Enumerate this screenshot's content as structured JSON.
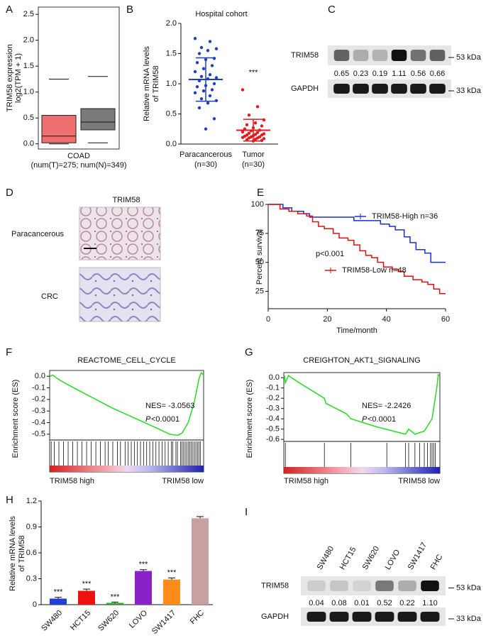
{
  "chart_data": [
    {
      "type": "box",
      "label": "A",
      "ylabel": [
        "TRIM58 expression",
        "log2(TPM + 1)"
      ],
      "xlabel": [
        "COAD",
        "(num(T)=275; num(N)=349)"
      ],
      "ylim": [
        -0.1,
        2.64
      ],
      "yticks": [
        {
          "value": 0,
          "label": "0.0"
        },
        0.5,
        {
          "value": 1,
          "label": "1.0"
        },
        1.5,
        {
          "value": 2,
          "label": "2.0"
        },
        2.5
      ],
      "groups": [
        {
          "color": "#f07070",
          "whiskers": [
            0,
            1.25
          ],
          "box": [
            0.02,
            0.15,
            0.55
          ]
        },
        {
          "color": "#7a7a7a",
          "whiskers": [
            0.02,
            1.3
          ],
          "box": [
            0.27,
            0.42,
            0.68
          ]
        }
      ]
    },
    {
      "type": "scatter",
      "label": "B",
      "title": "Hospital cohort",
      "ylabel": [
        "Relative mRNA levels",
        "of TRIM58"
      ],
      "ylim": [
        0,
        2.0
      ],
      "yticks": [
        {
          "value": 0,
          "label": "0.0"
        },
        0.5,
        {
          "value": 1,
          "label": "1.0"
        },
        1.5,
        {
          "value": 2,
          "label": "2.0"
        }
      ],
      "categories": [
        "Paracancerous",
        "Tumor"
      ],
      "category_notes": [
        "(n=30)",
        "(n=30)"
      ],
      "annotation": "***",
      "series": [
        {
          "color": "#1f3fbf",
          "mean": 1.07,
          "sd": 0.36,
          "values": [
            1.75,
            1.7,
            1.6,
            1.58,
            1.55,
            1.5,
            1.42,
            1.4,
            1.35,
            1.3,
            1.25,
            1.2,
            1.15,
            1.12,
            1.1,
            1.08,
            1.05,
            1.0,
            0.97,
            0.95,
            0.9,
            0.88,
            0.85,
            0.8,
            0.75,
            0.72,
            0.68,
            0.6,
            0.42,
            0.25
          ]
        },
        {
          "color": "#e41a1c",
          "mean": 0.23,
          "sd": 0.18,
          "values": [
            0.9,
            0.62,
            0.48,
            0.4,
            0.35,
            0.32,
            0.3,
            0.27,
            0.25,
            0.23,
            0.22,
            0.2,
            0.19,
            0.18,
            0.17,
            0.16,
            0.15,
            0.15,
            0.14,
            0.13,
            0.12,
            0.12,
            0.11,
            0.1,
            0.1,
            0.09,
            0.08,
            0.07,
            0.06,
            0.05
          ]
        }
      ]
    },
    {
      "type": "blot",
      "label": "C",
      "rows": [
        "TRIM58",
        "GAPDH"
      ],
      "markers": [
        "53 kDa",
        "33 kDa"
      ],
      "values": [
        0.65,
        0.23,
        0.19,
        1.11,
        0.56,
        0.66
      ]
    },
    {
      "type": "image",
      "label": "D",
      "title": "TRIM58",
      "rows": [
        "Paracancerous",
        "CRC"
      ]
    },
    {
      "type": "km",
      "label": "E",
      "ylabel": "Percent survival",
      "xlabel": "Time/month",
      "pvalue": "p<0.001",
      "xlim": [
        0,
        60
      ],
      "xticks": [
        0,
        20,
        40,
        60
      ],
      "ylim": [
        10,
        100
      ],
      "yticks": [
        25,
        50,
        75,
        100
      ],
      "series": [
        {
          "name": "TRIM58-High n=36",
          "color": "#1a2fd6",
          "x": [
            0,
            5,
            8,
            12,
            14,
            29,
            38,
            41,
            43,
            46,
            48,
            50,
            53,
            55,
            60
          ],
          "values": [
            100,
            97,
            94,
            92,
            89,
            86,
            83,
            81,
            78,
            72,
            67,
            61,
            58,
            50,
            50
          ]
        },
        {
          "name": "TRIM58-Low n=48",
          "color": "#e01010",
          "x": [
            0,
            4,
            7,
            10,
            13,
            15,
            17,
            19,
            22,
            24,
            27,
            29,
            31,
            33,
            35,
            37,
            39,
            42,
            44,
            46,
            49,
            52,
            54,
            56,
            58,
            60
          ],
          "values": [
            100,
            96,
            94,
            92,
            90,
            85,
            81,
            79,
            75,
            71,
            69,
            65,
            60,
            56,
            54,
            50,
            46,
            44,
            42,
            38,
            35,
            33,
            31,
            27,
            23,
            23
          ]
        }
      ]
    },
    {
      "type": "gsea",
      "label": "F",
      "title": "REACTOME_CELL_CYCLE",
      "ylabel": "Enrichment score (ES)",
      "nes": "NES= -3.0563",
      "p_symbol": "P",
      "p_value": "<0.0001",
      "xlabels": [
        "TRIM58 high",
        "TRIM58 low"
      ],
      "color": "#22dd22",
      "xlim": [
        0,
        1
      ],
      "ylim": [
        -0.55,
        0.05
      ],
      "yticks": [
        {
          "value": 0,
          "label": "0.0"
        },
        -0.1,
        -0.2,
        -0.3,
        -0.4,
        -0.5
      ],
      "x": [
        0,
        0.02,
        0.05,
        0.1,
        0.2,
        0.3,
        0.4,
        0.5,
        0.6,
        0.7,
        0.78,
        0.83,
        0.86,
        0.9,
        0.94,
        0.97,
        0.985,
        1
      ],
      "values": [
        0,
        0.01,
        -0.02,
        -0.06,
        -0.13,
        -0.2,
        -0.27,
        -0.33,
        -0.39,
        -0.45,
        -0.5,
        -0.51,
        -0.49,
        -0.4,
        -0.22,
        -0.02,
        0.03,
        0.01
      ],
      "hits": [
        0.01,
        0.03,
        0.06,
        0.09,
        0.12,
        0.15,
        0.18,
        0.21,
        0.24,
        0.27,
        0.3,
        0.33,
        0.36,
        0.38,
        0.41,
        0.44,
        0.46,
        0.49,
        0.51,
        0.53,
        0.55,
        0.57,
        0.59,
        0.61,
        0.63,
        0.65,
        0.67,
        0.69,
        0.71,
        0.73,
        0.75,
        0.77,
        0.79,
        0.8,
        0.82,
        0.83,
        0.85,
        0.86,
        0.87,
        0.88,
        0.89,
        0.9,
        0.91,
        0.92,
        0.93,
        0.94,
        0.95,
        0.96,
        0.97,
        0.98
      ]
    },
    {
      "type": "gsea",
      "label": "G",
      "title": "CREIGHTON_AKT1_SIGNALING",
      "ylabel": "Enrichment score (ES)",
      "nes": "NES= -2.2426",
      "p_symbol": "P",
      "p_value": "<0.0001",
      "xlabels": [
        "TRIM58 high",
        "TRIM58 low"
      ],
      "color": "#22dd22",
      "xlim": [
        0,
        1
      ],
      "ylim": [
        -0.62,
        0.05
      ],
      "yticks": [
        {
          "value": 0,
          "label": "0.0"
        },
        -0.1,
        -0.2,
        -0.3,
        -0.4,
        -0.5,
        -0.6
      ],
      "x": [
        0,
        0.005,
        0.01,
        0.03,
        0.1,
        0.26,
        0.27,
        0.4,
        0.43,
        0.6,
        0.78,
        0.8,
        0.84,
        0.9,
        0.95,
        0.98,
        0.99,
        1
      ],
      "values": [
        0,
        0.02,
        -0.05,
        0.02,
        -0.05,
        -0.2,
        -0.25,
        -0.35,
        -0.4,
        -0.48,
        -0.55,
        -0.5,
        -0.55,
        -0.52,
        -0.4,
        -0.1,
        0.03,
        0.02
      ],
      "hits": [
        0.01,
        0.26,
        0.43,
        0.66,
        0.78,
        0.8,
        0.84,
        0.87,
        0.9,
        0.92,
        0.94,
        0.95,
        0.96,
        0.97
      ]
    },
    {
      "type": "bar",
      "label": "H",
      "ylabel": [
        "Relative mRNA levels",
        "of TRIM58"
      ],
      "ylim": [
        0,
        1.2
      ],
      "yticks": [
        0,
        0.3,
        0.6,
        0.9,
        1.2
      ],
      "categories": [
        "SW480",
        "HCT15",
        "SW620",
        "LOVO",
        "SW1417",
        "FHC"
      ],
      "values": [
        0.07,
        0.16,
        0.02,
        0.39,
        0.29,
        1.0
      ],
      "errors": [
        0.015,
        0.02,
        0.01,
        0.015,
        0.02,
        0.02
      ],
      "colors": [
        "#1f3fd6",
        "#ee1111",
        "#22aa22",
        "#8a22c8",
        "#ff8c1a",
        "#c9a0a0"
      ],
      "annotations": [
        "***",
        "***",
        "***",
        "***",
        "***",
        null
      ]
    },
    {
      "type": "blot",
      "label": "I",
      "lanes": [
        "SW480",
        "HCT15",
        "SW620",
        "LOVO",
        "SW1417",
        "FHC"
      ],
      "rows": [
        "TRIM58",
        "GAPDH"
      ],
      "markers": [
        "53 kDa",
        "33 kDa"
      ],
      "values": [
        0.04,
        0.08,
        0.01,
        0.52,
        0.22,
        1.1
      ],
      "value_labels": [
        "0.04",
        "0.08",
        "0.01",
        "0.52",
        "0.22",
        "1.10"
      ]
    }
  ]
}
